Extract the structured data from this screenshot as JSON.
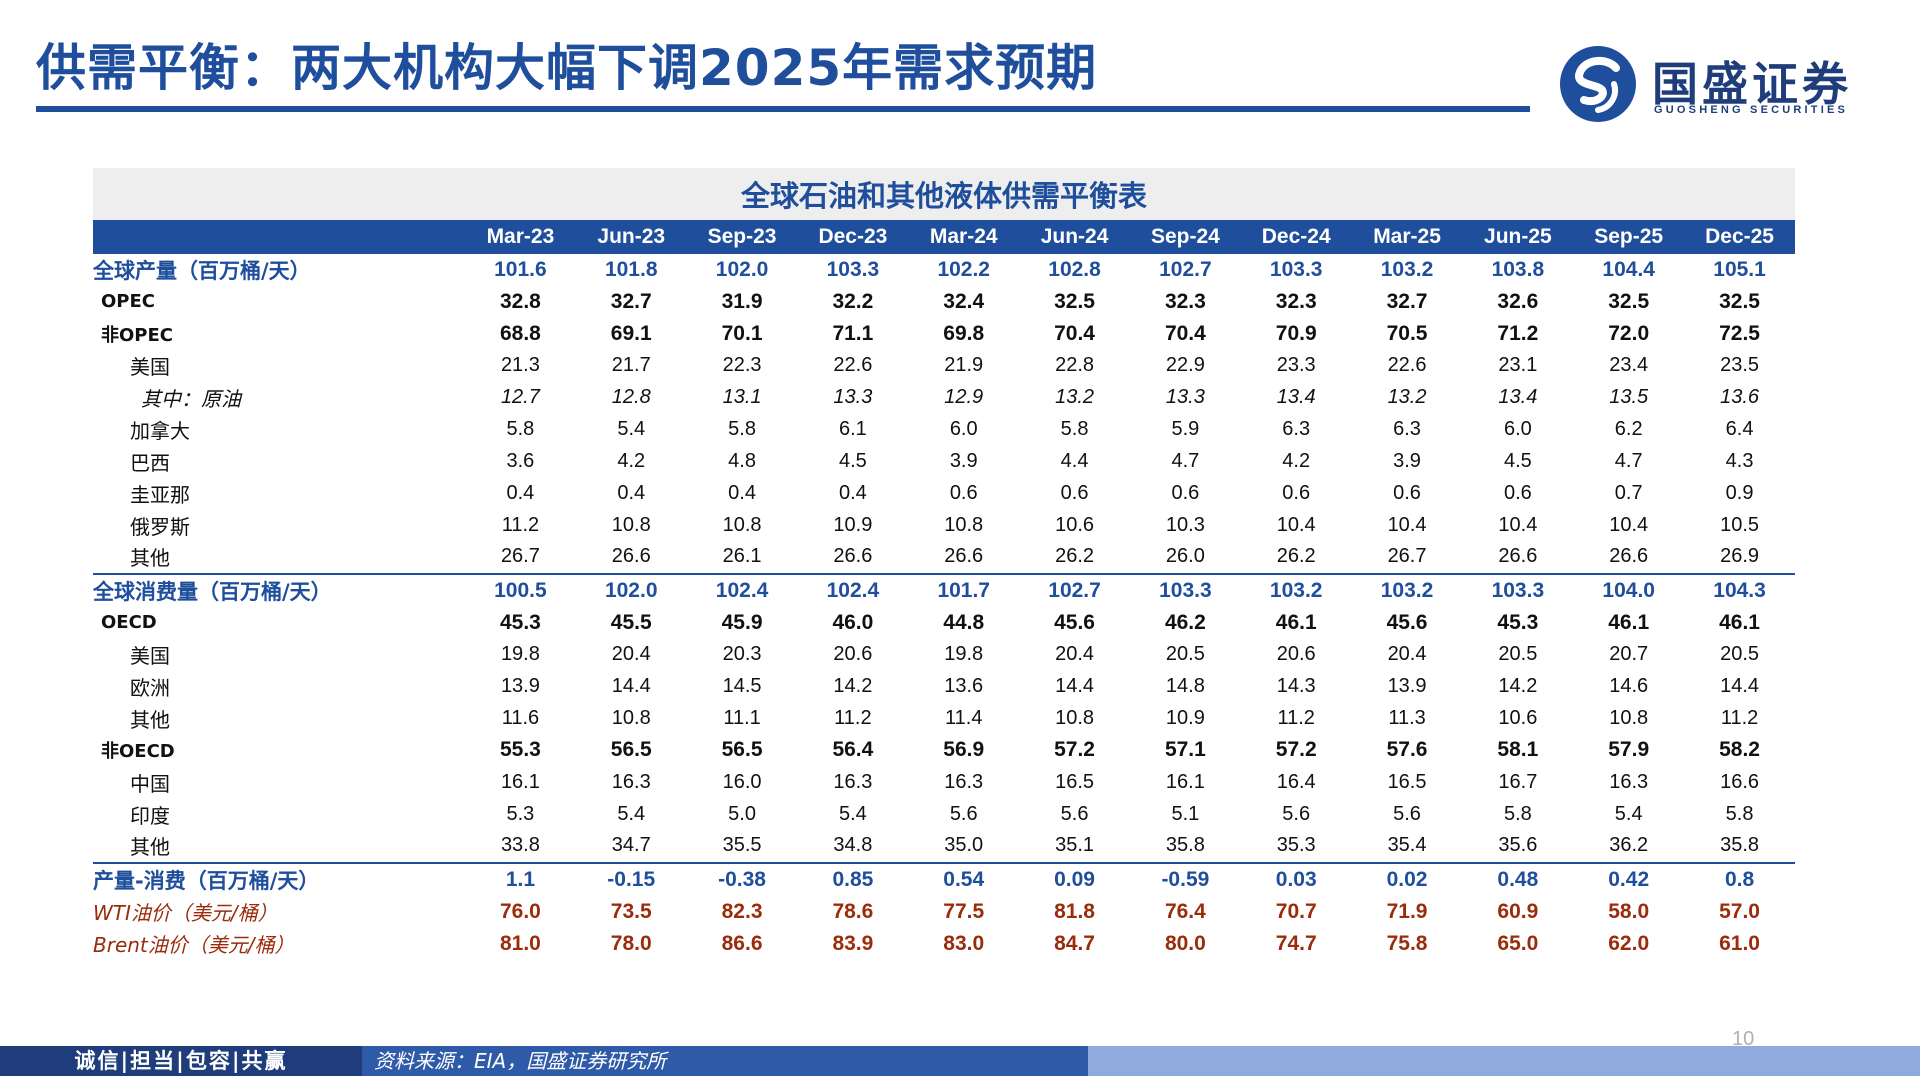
{
  "header": {
    "title": "供需平衡：两大机构大幅下调2025年需求预期"
  },
  "logo": {
    "name_cn": "国盛证券",
    "name_en": "GUOSHENG SECURITIES"
  },
  "table": {
    "title": "全球石油和其他液体供需平衡表",
    "columns": [
      "Mar-23",
      "Jun-23",
      "Sep-23",
      "Dec-23",
      "Mar-24",
      "Jun-24",
      "Sep-24",
      "Dec-24",
      "Mar-25",
      "Jun-25",
      "Sep-25",
      "Dec-25"
    ],
    "rows": [
      {
        "label": "全球产量（百万桶/天）",
        "style": "l0",
        "values": [
          "101.6",
          "101.8",
          "102.0",
          "103.3",
          "102.2",
          "102.8",
          "102.7",
          "103.3",
          "103.2",
          "103.8",
          "104.4",
          "105.1"
        ]
      },
      {
        "label": "OPEC",
        "style": "l1",
        "values": [
          "32.8",
          "32.7",
          "31.9",
          "32.2",
          "32.4",
          "32.5",
          "32.3",
          "32.3",
          "32.7",
          "32.6",
          "32.5",
          "32.5"
        ]
      },
      {
        "label": "非OPEC",
        "style": "l1",
        "values": [
          "68.8",
          "69.1",
          "70.1",
          "71.1",
          "69.8",
          "70.4",
          "70.4",
          "70.9",
          "70.5",
          "71.2",
          "72.0",
          "72.5"
        ]
      },
      {
        "label": "美国",
        "style": "l2",
        "values": [
          "21.3",
          "21.7",
          "22.3",
          "22.6",
          "21.9",
          "22.8",
          "22.9",
          "23.3",
          "22.6",
          "23.1",
          "23.4",
          "23.5"
        ]
      },
      {
        "label": "其中：原油",
        "style": "l3",
        "values": [
          "12.7",
          "12.8",
          "13.1",
          "13.3",
          "12.9",
          "13.2",
          "13.3",
          "13.4",
          "13.2",
          "13.4",
          "13.5",
          "13.6"
        ]
      },
      {
        "label": "加拿大",
        "style": "l2",
        "values": [
          "5.8",
          "5.4",
          "5.8",
          "6.1",
          "6.0",
          "5.8",
          "5.9",
          "6.3",
          "6.3",
          "6.0",
          "6.2",
          "6.4"
        ]
      },
      {
        "label": "巴西",
        "style": "l2",
        "values": [
          "3.6",
          "4.2",
          "4.8",
          "4.5",
          "3.9",
          "4.4",
          "4.7",
          "4.2",
          "3.9",
          "4.5",
          "4.7",
          "4.3"
        ]
      },
      {
        "label": "圭亚那",
        "style": "l2",
        "values": [
          "0.4",
          "0.4",
          "0.4",
          "0.4",
          "0.6",
          "0.6",
          "0.6",
          "0.6",
          "0.6",
          "0.6",
          "0.7",
          "0.9"
        ]
      },
      {
        "label": "俄罗斯",
        "style": "l2",
        "values": [
          "11.2",
          "10.8",
          "10.8",
          "10.9",
          "10.8",
          "10.6",
          "10.3",
          "10.4",
          "10.4",
          "10.4",
          "10.4",
          "10.5"
        ]
      },
      {
        "label": "其他",
        "style": "l2",
        "values": [
          "26.7",
          "26.6",
          "26.1",
          "26.6",
          "26.6",
          "26.2",
          "26.0",
          "26.2",
          "26.7",
          "26.6",
          "26.6",
          "26.9"
        ]
      },
      {
        "label": "全球消费量（百万桶/天）",
        "style": "l0 sep",
        "values": [
          "100.5",
          "102.0",
          "102.4",
          "102.4",
          "101.7",
          "102.7",
          "103.3",
          "103.2",
          "103.2",
          "103.3",
          "104.0",
          "104.3"
        ]
      },
      {
        "label": "OECD",
        "style": "l1",
        "values": [
          "45.3",
          "45.5",
          "45.9",
          "46.0",
          "44.8",
          "45.6",
          "46.2",
          "46.1",
          "45.6",
          "45.3",
          "46.1",
          "46.1"
        ]
      },
      {
        "label": "美国",
        "style": "l2",
        "values": [
          "19.8",
          "20.4",
          "20.3",
          "20.6",
          "19.8",
          "20.4",
          "20.5",
          "20.6",
          "20.4",
          "20.5",
          "20.7",
          "20.5"
        ]
      },
      {
        "label": "欧洲",
        "style": "l2",
        "values": [
          "13.9",
          "14.4",
          "14.5",
          "14.2",
          "13.6",
          "14.4",
          "14.8",
          "14.3",
          "13.9",
          "14.2",
          "14.6",
          "14.4"
        ]
      },
      {
        "label": "其他",
        "style": "l2",
        "values": [
          "11.6",
          "10.8",
          "11.1",
          "11.2",
          "11.4",
          "10.8",
          "10.9",
          "11.2",
          "11.3",
          "10.6",
          "10.8",
          "11.2"
        ]
      },
      {
        "label": "非OECD",
        "style": "l1",
        "values": [
          "55.3",
          "56.5",
          "56.5",
          "56.4",
          "56.9",
          "57.2",
          "57.1",
          "57.2",
          "57.6",
          "58.1",
          "57.9",
          "58.2"
        ]
      },
      {
        "label": "中国",
        "style": "l2",
        "values": [
          "16.1",
          "16.3",
          "16.0",
          "16.3",
          "16.3",
          "16.5",
          "16.1",
          "16.4",
          "16.5",
          "16.7",
          "16.3",
          "16.6"
        ]
      },
      {
        "label": "印度",
        "style": "l2",
        "values": [
          "5.3",
          "5.4",
          "5.0",
          "5.4",
          "5.6",
          "5.6",
          "5.1",
          "5.6",
          "5.6",
          "5.8",
          "5.4",
          "5.8"
        ]
      },
      {
        "label": "其他",
        "style": "l2",
        "values": [
          "33.8",
          "34.7",
          "35.5",
          "34.8",
          "35.0",
          "35.1",
          "35.8",
          "35.3",
          "35.4",
          "35.6",
          "36.2",
          "35.8"
        ]
      },
      {
        "label": "产量-消费（百万桶/天）",
        "style": "l0 sep",
        "values": [
          "1.1",
          "-0.15",
          "-0.38",
          "0.85",
          "0.54",
          "0.09",
          "-0.59",
          "0.03",
          "0.02",
          "0.48",
          "0.42",
          "0.8"
        ]
      },
      {
        "label": "WTI油价（美元/桶）",
        "style": "price",
        "values": [
          "76.0",
          "73.5",
          "82.3",
          "78.6",
          "77.5",
          "81.8",
          "76.4",
          "70.7",
          "71.9",
          "60.9",
          "58.0",
          "57.0"
        ]
      },
      {
        "label": "Brent油价（美元/桶）",
        "style": "price",
        "values": [
          "81.0",
          "78.0",
          "86.6",
          "83.9",
          "83.0",
          "84.7",
          "80.0",
          "74.7",
          "75.8",
          "65.0",
          "62.0",
          "61.0"
        ]
      }
    ]
  },
  "footer": {
    "motto": "诚信|担当|包容|共赢",
    "source": "资料来源：EIA，国盛证券研究所",
    "page_number": "10"
  },
  "colors": {
    "brand_blue": "#1f4e9c",
    "price_red": "#9b2c0b",
    "footer_light": "#8faadc"
  }
}
